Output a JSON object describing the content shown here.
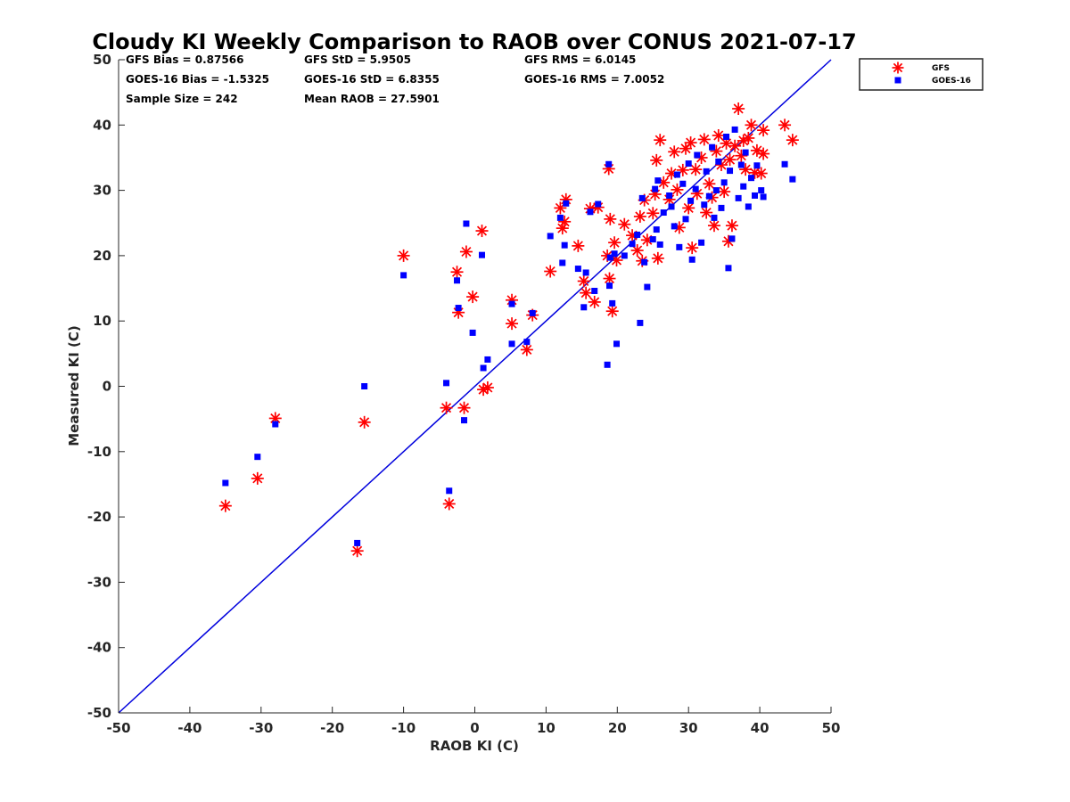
{
  "chart_data": {
    "type": "scatter",
    "title": "Cloudy KI Weekly Comparison to RAOB over CONUS 2021-07-17",
    "xlabel": "RAOB KI (C)",
    "ylabel": "Measured KI (C)",
    "xlim": [
      -50,
      50
    ],
    "ylim": [
      -50,
      50
    ],
    "xticks": [
      "-50",
      "-40",
      "-30",
      "-20",
      "-10",
      "0",
      "10",
      "20",
      "30",
      "40",
      "50"
    ],
    "yticks": [
      "-50",
      "-40",
      "-30",
      "-20",
      "-10",
      "0",
      "10",
      "20",
      "30",
      "40",
      "50"
    ],
    "grid": false,
    "legend_position": "outside-top-right",
    "reference_line": {
      "x": [
        -50,
        50
      ],
      "y": [
        -50,
        50
      ],
      "color": "#0000dd"
    },
    "stats": [
      [
        "GFS Bias = 0.87566",
        "GFS StD = 5.9505",
        "GFS RMS = 6.0145"
      ],
      [
        "GOES-16 Bias = -1.5325",
        "GOES-16 StD = 6.8355",
        "GOES-16 RMS = 7.0052"
      ],
      [
        "Sample Size = 242",
        "Mean RAOB = 27.5901",
        ""
      ]
    ],
    "series": [
      {
        "name": "GFS",
        "marker": "asterisk",
        "color": "#ff0000",
        "points": [
          [
            -35,
            -18.3
          ],
          [
            -30.5,
            -14.1
          ],
          [
            -28,
            -4.9
          ],
          [
            -16.5,
            -25.2
          ],
          [
            -15.5,
            -5.5
          ],
          [
            -10,
            20
          ],
          [
            -4,
            -3.3
          ],
          [
            -3.6,
            -18
          ],
          [
            -2.5,
            17.5
          ],
          [
            -2.3,
            11.3
          ],
          [
            -1.5,
            -3.3
          ],
          [
            -1.2,
            20.6
          ],
          [
            -0.3,
            13.7
          ],
          [
            1,
            23.8
          ],
          [
            1.2,
            -0.5
          ],
          [
            1.8,
            -0.2
          ],
          [
            5.2,
            13.2
          ],
          [
            5.2,
            9.6
          ],
          [
            7.3,
            5.6
          ],
          [
            8.1,
            10.9
          ],
          [
            10.6,
            17.6
          ],
          [
            12,
            27.3
          ],
          [
            12.3,
            24.2
          ],
          [
            12.6,
            25.2
          ],
          [
            12.8,
            28.6
          ],
          [
            14.5,
            21.5
          ],
          [
            15.3,
            16.1
          ],
          [
            15.6,
            14.3
          ],
          [
            16.2,
            27.2
          ],
          [
            16.8,
            12.9
          ],
          [
            17.3,
            27.4
          ],
          [
            18.6,
            20
          ],
          [
            18.8,
            33.3
          ],
          [
            18.9,
            16.5
          ],
          [
            19,
            25.6
          ],
          [
            19.3,
            11.5
          ],
          [
            19.6,
            22
          ],
          [
            19.9,
            19.3
          ],
          [
            21,
            24.8
          ],
          [
            22.1,
            23.1
          ],
          [
            22.8,
            20.8
          ],
          [
            23.2,
            26
          ],
          [
            23.5,
            19.2
          ],
          [
            23.8,
            28.5
          ],
          [
            24.2,
            22.4
          ],
          [
            25,
            26.5
          ],
          [
            25.3,
            29.4
          ],
          [
            25.5,
            34.6
          ],
          [
            25.7,
            19.6
          ],
          [
            26,
            37.7
          ],
          [
            26.5,
            31.2
          ],
          [
            27.3,
            28.6
          ],
          [
            27.6,
            32.6
          ],
          [
            28,
            35.9
          ],
          [
            28.4,
            30.1
          ],
          [
            28.7,
            24.3
          ],
          [
            29.2,
            33.1
          ],
          [
            29.6,
            36.4
          ],
          [
            30,
            27.3
          ],
          [
            30.3,
            37.3
          ],
          [
            30.5,
            21.2
          ],
          [
            31,
            33.2
          ],
          [
            31.2,
            29.5
          ],
          [
            31.8,
            35
          ],
          [
            32.2,
            37.8
          ],
          [
            32.5,
            26.6
          ],
          [
            32.9,
            31
          ],
          [
            33.3,
            28.9
          ],
          [
            33.6,
            24.6
          ],
          [
            33.9,
            36
          ],
          [
            34.2,
            38.4
          ],
          [
            34.6,
            33.9
          ],
          [
            35,
            29.8
          ],
          [
            35.3,
            37.2
          ],
          [
            35.6,
            22.2
          ],
          [
            35.8,
            34.7
          ],
          [
            36.1,
            24.6
          ],
          [
            36.5,
            36.8
          ],
          [
            37,
            42.5
          ],
          [
            37.4,
            35.3
          ],
          [
            37.7,
            37.6
          ],
          [
            38,
            33.2
          ],
          [
            38.4,
            38
          ],
          [
            38.8,
            40
          ],
          [
            39.3,
            32.7
          ],
          [
            39.6,
            36.1
          ],
          [
            40.2,
            32.6
          ],
          [
            40.5,
            39.2
          ],
          [
            40.5,
            35.6
          ],
          [
            43.5,
            40
          ],
          [
            44.6,
            37.7
          ]
        ]
      },
      {
        "name": "GOES-16",
        "marker": "square",
        "color": "#0000ff",
        "points": [
          [
            -35,
            -14.8
          ],
          [
            -30.5,
            -10.8
          ],
          [
            -28,
            -5.8
          ],
          [
            -16.5,
            -24
          ],
          [
            -15.5,
            0
          ],
          [
            -10,
            17
          ],
          [
            -4,
            0.5
          ],
          [
            -3.6,
            -16
          ],
          [
            -2.5,
            16.2
          ],
          [
            -2.3,
            12
          ],
          [
            -1.5,
            -5.2
          ],
          [
            -1.2,
            24.9
          ],
          [
            -0.3,
            8.2
          ],
          [
            1,
            20.1
          ],
          [
            1.2,
            2.8
          ],
          [
            1.8,
            4.1
          ],
          [
            5.2,
            6.5
          ],
          [
            5.2,
            12.6
          ],
          [
            7.3,
            6.8
          ],
          [
            8.1,
            11.2
          ],
          [
            10.6,
            23
          ],
          [
            12,
            25.8
          ],
          [
            12.3,
            18.9
          ],
          [
            12.6,
            21.6
          ],
          [
            12.8,
            28
          ],
          [
            14.5,
            18
          ],
          [
            15.3,
            12.1
          ],
          [
            15.6,
            17.4
          ],
          [
            16.2,
            26.7
          ],
          [
            16.8,
            14.6
          ],
          [
            17.3,
            27.9
          ],
          [
            18.6,
            3.3
          ],
          [
            18.8,
            34
          ],
          [
            18.9,
            15.4
          ],
          [
            19,
            19.7
          ],
          [
            19.3,
            12.7
          ],
          [
            19.6,
            20.3
          ],
          [
            19.9,
            6.5
          ],
          [
            21,
            20
          ],
          [
            22.1,
            21.8
          ],
          [
            22.8,
            23.2
          ],
          [
            23.2,
            9.7
          ],
          [
            23.5,
            28.8
          ],
          [
            23.8,
            19
          ],
          [
            24.2,
            15.2
          ],
          [
            25,
            22.5
          ],
          [
            25.3,
            30.2
          ],
          [
            25.5,
            24
          ],
          [
            25.7,
            31.5
          ],
          [
            26,
            21.7
          ],
          [
            26.5,
            26.6
          ],
          [
            27.3,
            29.2
          ],
          [
            27.6,
            27.5
          ],
          [
            28,
            24.5
          ],
          [
            28.4,
            32.4
          ],
          [
            28.7,
            21.3
          ],
          [
            29.2,
            31
          ],
          [
            29.6,
            25.6
          ],
          [
            30,
            34.1
          ],
          [
            30.3,
            28.4
          ],
          [
            30.5,
            19.4
          ],
          [
            31,
            30.2
          ],
          [
            31.2,
            35.4
          ],
          [
            31.8,
            22
          ],
          [
            32.2,
            27.8
          ],
          [
            32.5,
            32.9
          ],
          [
            32.9,
            29.1
          ],
          [
            33.3,
            36.6
          ],
          [
            33.6,
            25.8
          ],
          [
            33.9,
            30
          ],
          [
            34.2,
            34.4
          ],
          [
            34.6,
            27.3
          ],
          [
            35,
            31.2
          ],
          [
            35.3,
            38.2
          ],
          [
            35.6,
            18.1
          ],
          [
            35.8,
            33
          ],
          [
            36.1,
            22.6
          ],
          [
            36.5,
            39.3
          ],
          [
            37,
            28.8
          ],
          [
            37.4,
            33.9
          ],
          [
            37.7,
            30.6
          ],
          [
            38,
            35.8
          ],
          [
            38.4,
            27.5
          ],
          [
            38.8,
            31.9
          ],
          [
            39.3,
            29.2
          ],
          [
            39.6,
            33.8
          ],
          [
            40.2,
            30
          ],
          [
            40.5,
            29
          ],
          [
            43.5,
            34
          ],
          [
            44.6,
            31.7
          ]
        ]
      }
    ]
  }
}
